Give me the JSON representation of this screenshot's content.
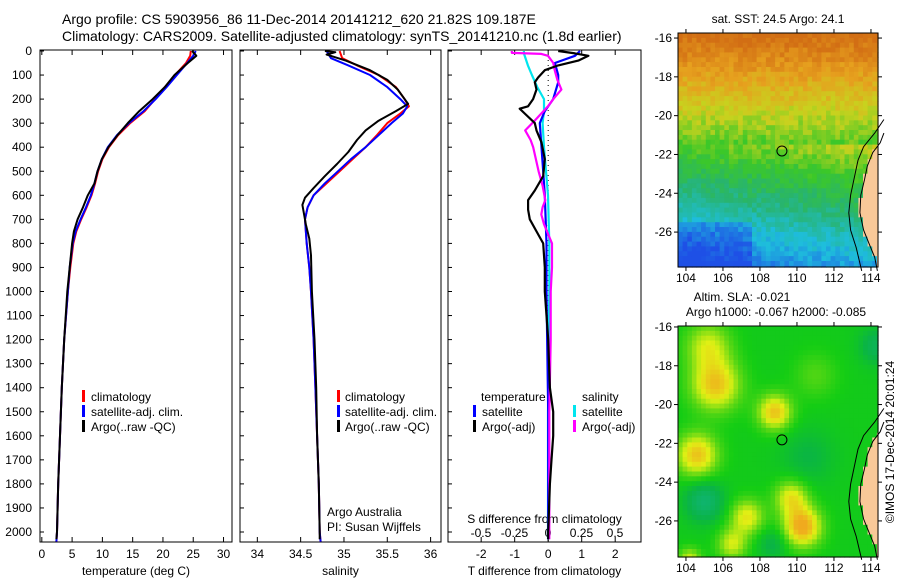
{
  "title": {
    "line1": "Argo profile: CS 5903956_86 11-Dec-2014 20141212_620 21.82S 109.187E",
    "line2": "Climatology: CARS2009. Satellite-adjusted climatology: synTS_20141210.nc (1.8d earlier)"
  },
  "colors": {
    "climatology": "#ff0000",
    "satellite": "#0000ff",
    "argo": "#000000",
    "sal_satellite": "#00e5ee",
    "sal_argo": "#ff00ff"
  },
  "depth_ticks": [
    "0",
    "100",
    "200",
    "300",
    "400",
    "500",
    "600",
    "700",
    "800",
    "900",
    "1000",
    "1100",
    "1200",
    "1300",
    "1400",
    "1500",
    "1600",
    "1700",
    "1800",
    "1900",
    "2000"
  ],
  "chart_data": [
    {
      "type": "line",
      "name": "temperature",
      "xlabel": "temperature (deg C)",
      "ylabel": "depth",
      "xlim": [
        -0.3,
        31.4
      ],
      "ylim": [
        2040,
        0
      ],
      "xticks": [
        "0",
        "5",
        "10",
        "15",
        "20",
        "25",
        "30"
      ],
      "legend": [
        "climatology",
        "satellite-adj. clim.",
        "Argo(..raw -QC)"
      ],
      "legend_position": "bottom-center",
      "series": [
        {
          "name": "climatology",
          "depth": [
            0,
            20,
            50,
            100,
            150,
            200,
            250,
            300,
            350,
            400,
            450,
            500,
            550,
            600,
            650,
            700,
            750,
            800,
            900,
            1000,
            1200,
            1400,
            1600,
            1800,
            2000,
            2040
          ],
          "values": [
            24.6,
            24.5,
            23.8,
            22.0,
            20.3,
            18.7,
            17.0,
            14.6,
            12.6,
            11.1,
            10.0,
            9.3,
            8.8,
            8.2,
            7.4,
            6.5,
            5.7,
            5.2,
            4.7,
            4.3,
            3.7,
            3.3,
            3.0,
            2.7,
            2.5,
            2.4
          ]
        },
        {
          "name": "satellite-adj. clim.",
          "depth": [
            0,
            20,
            50,
            100,
            150,
            200,
            250,
            300,
            350,
            400,
            450,
            500,
            550,
            600,
            650,
            700,
            750,
            800,
            900,
            1000,
            1200,
            1400,
            1600,
            1800,
            2000,
            2040
          ],
          "values": [
            25.4,
            25.0,
            24.0,
            22.3,
            20.6,
            18.8,
            16.8,
            14.4,
            12.4,
            10.9,
            9.9,
            9.2,
            8.7,
            8.1,
            7.3,
            6.4,
            5.6,
            5.1,
            4.6,
            4.3,
            3.7,
            3.3,
            3.0,
            2.7,
            2.5,
            2.4
          ]
        },
        {
          "name": "Argo(..raw -QC)",
          "depth": [
            0,
            10,
            20,
            50,
            100,
            150,
            200,
            250,
            300,
            350,
            400,
            450,
            500,
            550,
            600,
            650,
            700,
            750,
            800,
            900,
            1000,
            1200,
            1400,
            1600,
            1800,
            2000,
            2030
          ],
          "values": [
            24.8,
            25.2,
            25.5,
            24.1,
            21.9,
            20.3,
            18.3,
            16.1,
            14.2,
            12.5,
            11.0,
            9.9,
            9.2,
            8.7,
            7.6,
            6.8,
            5.9,
            5.3,
            5.0,
            4.6,
            4.2,
            3.7,
            3.3,
            3.0,
            2.7,
            2.5,
            2.4
          ]
        }
      ]
    },
    {
      "type": "line",
      "name": "salinity",
      "xlabel": "salinity",
      "ylabel": "depth",
      "xlim": [
        33.8,
        36.12
      ],
      "ylim": [
        2040,
        0
      ],
      "xticks": [
        "34",
        "34.5",
        "35",
        "35.5",
        "36"
      ],
      "legend": [
        "climatology",
        "satellite-adj. clim.",
        "Argo(..raw -QC)"
      ],
      "legend_position": "bottom-right",
      "annotation": [
        "Argo Australia",
        "PI: Susan Wijffels"
      ],
      "series": [
        {
          "name": "climatology",
          "depth": [
            0,
            30,
            60,
            100,
            150,
            200,
            230,
            260,
            300,
            350,
            400,
            450,
            500,
            550,
            600,
            650,
            700,
            800,
            900,
            1000,
            1200,
            1400,
            1600,
            1800,
            2000,
            2040
          ],
          "values": [
            34.95,
            34.98,
            35.15,
            35.4,
            35.6,
            35.7,
            35.75,
            35.65,
            35.5,
            35.38,
            35.25,
            35.1,
            34.95,
            34.8,
            34.65,
            34.58,
            34.55,
            34.57,
            34.6,
            34.62,
            34.65,
            34.67,
            34.69,
            34.71,
            34.72,
            34.73
          ]
        },
        {
          "name": "satellite-adj. clim.",
          "depth": [
            0,
            30,
            60,
            100,
            150,
            200,
            230,
            260,
            300,
            350,
            400,
            450,
            500,
            550,
            600,
            650,
            700,
            800,
            900,
            1000,
            1200,
            1400,
            1600,
            1800,
            2000,
            2040
          ],
          "values": [
            34.8,
            34.85,
            35.05,
            35.3,
            35.5,
            35.65,
            35.73,
            35.68,
            35.55,
            35.4,
            35.25,
            35.08,
            34.93,
            34.78,
            34.65,
            34.58,
            34.55,
            34.57,
            34.6,
            34.62,
            34.65,
            34.67,
            34.69,
            34.71,
            34.72,
            34.73
          ]
        },
        {
          "name": "Argo(..raw -QC)",
          "depth": [
            0,
            5,
            15,
            40,
            80,
            120,
            160,
            200,
            220,
            250,
            290,
            330,
            370,
            420,
            470,
            520,
            570,
            610,
            640,
            680,
            720,
            780,
            850,
            1000,
            1200,
            1400,
            1600,
            1800,
            2000,
            2030
          ],
          "values": [
            34.78,
            34.9,
            34.8,
            35.02,
            35.3,
            35.5,
            35.62,
            35.7,
            35.74,
            35.6,
            35.4,
            35.25,
            35.15,
            35.05,
            34.92,
            34.78,
            34.65,
            34.55,
            34.52,
            34.54,
            34.56,
            34.6,
            34.62,
            34.63,
            34.66,
            34.68,
            34.69,
            34.71,
            34.72,
            34.72
          ]
        }
      ]
    },
    {
      "type": "line",
      "name": "differences",
      "xlabel": "T difference from climatology",
      "x2label": "S difference from climatology",
      "ylabel": "depth",
      "xlim": [
        -2.99,
        2.77
      ],
      "x2lim": [
        -0.746,
        0.694
      ],
      "ylim": [
        2040,
        0
      ],
      "xticks": [
        "-2",
        "-1",
        "0",
        "1",
        "2"
      ],
      "x2ticks": [
        "-0.5",
        "-0.25",
        "0",
        "0.25",
        "0.5"
      ],
      "legend_groups": [
        {
          "title": "temperature",
          "items": [
            "satellite",
            "Argo(-adj)"
          ]
        },
        {
          "title": "salinity",
          "items": [
            "satellite",
            "Argo(-adj)"
          ]
        }
      ],
      "series": [
        {
          "name": "T satellite",
          "axis": "T",
          "depth": [
            0,
            20,
            50,
            100,
            130,
            200,
            250,
            300,
            400,
            500,
            600,
            800,
            1000,
            1500,
            2000,
            2030
          ],
          "values": [
            0.95,
            0.8,
            0.2,
            0.3,
            0.3,
            0.15,
            -0.1,
            -0.25,
            -0.2,
            -0.15,
            -0.1,
            -0.05,
            -0.05,
            0.0,
            0.0,
            0.0
          ]
        },
        {
          "name": "T Argo(-adj)",
          "axis": "T",
          "depth": [
            0,
            10,
            20,
            40,
            60,
            80,
            110,
            130,
            160,
            200,
            230,
            240,
            260,
            300,
            330,
            380,
            450,
            520,
            580,
            620,
            660,
            700,
            750,
            800,
            900,
            1000,
            1200,
            1400,
            1500,
            1600,
            1700,
            1800,
            2000,
            2030
          ],
          "values": [
            0.3,
            0.8,
            1.2,
            0.9,
            0.3,
            -0.1,
            -0.3,
            -0.4,
            -0.35,
            -0.45,
            -0.6,
            -0.85,
            -0.7,
            -0.4,
            -0.35,
            -0.2,
            -0.1,
            -0.15,
            -0.4,
            -0.6,
            -0.6,
            -0.55,
            -0.35,
            -0.15,
            -0.1,
            -0.1,
            0.0,
            0.05,
            0.15,
            0.15,
            0.1,
            0.05,
            0.0,
            0.0
          ]
        },
        {
          "name": "S satellite",
          "axis": "S",
          "depth": [
            0,
            10,
            60,
            100,
            150,
            200,
            250,
            300,
            400,
            600,
            800,
            1000,
            1500,
            2000,
            2030
          ],
          "values": [
            -0.18,
            -0.18,
            -0.15,
            -0.12,
            -0.08,
            -0.03,
            -0.03,
            -0.04,
            -0.03,
            0.0,
            0.01,
            0.01,
            0.0,
            0.0,
            0.0
          ]
        },
        {
          "name": "S Argo(-adj)",
          "axis": "S",
          "depth": [
            0,
            8,
            12,
            20,
            50,
            80,
            120,
            160,
            200,
            230,
            260,
            290,
            330,
            370,
            400,
            450,
            500,
            560,
            620,
            650,
            680,
            720,
            800,
            900,
            1000,
            1200,
            1500,
            2000,
            2030
          ],
          "values": [
            -0.27,
            -0.27,
            -0.05,
            0.0,
            0.04,
            0.05,
            0.07,
            0.1,
            0.04,
            0.0,
            -0.05,
            -0.1,
            -0.17,
            -0.13,
            -0.11,
            -0.09,
            -0.07,
            -0.04,
            -0.02,
            -0.04,
            -0.05,
            -0.03,
            0.03,
            0.03,
            0.02,
            0.02,
            0.01,
            0.01,
            0.01
          ]
        }
      ]
    },
    {
      "type": "heatmap",
      "name": "sst-map",
      "title": "sat. SST: 24.5 Argo: 24.1",
      "xlim": [
        103.57,
        114.38
      ],
      "ylim": [
        -27.8,
        -15.74
      ],
      "xticks": [
        "104",
        "106",
        "108",
        "110",
        "112",
        "114"
      ],
      "yticks": [
        "-16",
        "-18",
        "-20",
        "-22",
        "-24",
        "-26"
      ],
      "argo_position": {
        "lon": 109.187,
        "lat": -21.82
      }
    },
    {
      "type": "heatmap",
      "name": "sla-map",
      "title": "Altim. SLA: -0.021",
      "subtitle": "Argo h1000: -0.067 h2000: -0.085",
      "xlim": [
        103.57,
        114.38
      ],
      "ylim": [
        -27.86,
        -15.95
      ],
      "xticks": [
        "104",
        "106",
        "108",
        "110",
        "112",
        "114"
      ],
      "yticks": [
        "-16",
        "-18",
        "-20",
        "-22",
        "-24",
        "-26"
      ],
      "argo_position": {
        "lon": 109.187,
        "lat": -21.82
      }
    }
  ],
  "labels": {
    "legend_clim": "climatology",
    "legend_sat": "satellite-adj. clim.",
    "legend_argo": "Argo(..raw -QC)",
    "diff_temp_title": "temperature",
    "diff_sal_title": "salinity",
    "diff_satellite": "satellite",
    "diff_argo": "Argo(-adj)",
    "pi_line1": "Argo Australia",
    "pi_line2": "PI: Susan Wijffels",
    "credit": "©IMOS 17-Dec-2014 20:01:24"
  }
}
